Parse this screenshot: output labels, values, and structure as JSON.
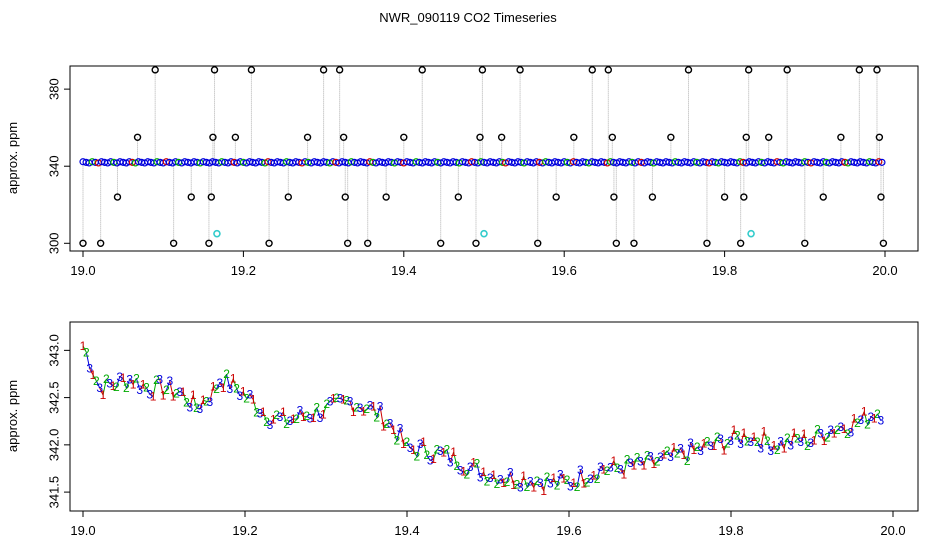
{
  "title": "NWR_090119  CO2 Timeseries",
  "colors": {
    "frame": "#000000",
    "connector": "#b0b0b0",
    "series1": "#cc0000",
    "series2": "#00aa00",
    "series3": "#0000dd",
    "flagged": "#33cccc"
  },
  "chart_data": [
    {
      "type": "scatter",
      "ylabel": "approx. ppm",
      "xlabel": "",
      "xlim": [
        19.0,
        20.0
      ],
      "ylim": [
        296,
        392
      ],
      "xticks": [
        19.0,
        19.2,
        19.4,
        19.6,
        19.8,
        20.0
      ],
      "yticks": [
        300,
        340,
        380
      ],
      "baseline": 342,
      "outliers": [
        {
          "x": 19.0,
          "y": 300
        },
        {
          "x": 19.022,
          "y": 300
        },
        {
          "x": 19.043,
          "y": 324
        },
        {
          "x": 19.068,
          "y": 355
        },
        {
          "x": 19.09,
          "y": 390
        },
        {
          "x": 19.113,
          "y": 300
        },
        {
          "x": 19.135,
          "y": 324
        },
        {
          "x": 19.157,
          "y": 300
        },
        {
          "x": 19.16,
          "y": 324
        },
        {
          "x": 19.162,
          "y": 355
        },
        {
          "x": 19.164,
          "y": 390
        },
        {
          "x": 19.19,
          "y": 355
        },
        {
          "x": 19.21,
          "y": 390
        },
        {
          "x": 19.232,
          "y": 300
        },
        {
          "x": 19.256,
          "y": 324
        },
        {
          "x": 19.28,
          "y": 355
        },
        {
          "x": 19.3,
          "y": 390
        },
        {
          "x": 19.32,
          "y": 390
        },
        {
          "x": 19.325,
          "y": 355
        },
        {
          "x": 19.327,
          "y": 324
        },
        {
          "x": 19.33,
          "y": 300
        },
        {
          "x": 19.355,
          "y": 300
        },
        {
          "x": 19.378,
          "y": 324
        },
        {
          "x": 19.4,
          "y": 355
        },
        {
          "x": 19.423,
          "y": 390
        },
        {
          "x": 19.446,
          "y": 300
        },
        {
          "x": 19.468,
          "y": 324
        },
        {
          "x": 19.49,
          "y": 300
        },
        {
          "x": 19.495,
          "y": 355
        },
        {
          "x": 19.498,
          "y": 390
        },
        {
          "x": 19.522,
          "y": 355
        },
        {
          "x": 19.545,
          "y": 390
        },
        {
          "x": 19.567,
          "y": 300
        },
        {
          "x": 19.59,
          "y": 324
        },
        {
          "x": 19.612,
          "y": 355
        },
        {
          "x": 19.635,
          "y": 390
        },
        {
          "x": 19.655,
          "y": 390
        },
        {
          "x": 19.66,
          "y": 355
        },
        {
          "x": 19.662,
          "y": 324
        },
        {
          "x": 19.665,
          "y": 300
        },
        {
          "x": 19.687,
          "y": 300
        },
        {
          "x": 19.71,
          "y": 324
        },
        {
          "x": 19.733,
          "y": 355
        },
        {
          "x": 19.755,
          "y": 390
        },
        {
          "x": 19.778,
          "y": 300
        },
        {
          "x": 19.8,
          "y": 324
        },
        {
          "x": 19.82,
          "y": 300
        },
        {
          "x": 19.824,
          "y": 324
        },
        {
          "x": 19.827,
          "y": 355
        },
        {
          "x": 19.83,
          "y": 390
        },
        {
          "x": 19.855,
          "y": 355
        },
        {
          "x": 19.878,
          "y": 390
        },
        {
          "x": 19.9,
          "y": 300
        },
        {
          "x": 19.923,
          "y": 324
        },
        {
          "x": 19.945,
          "y": 355
        },
        {
          "x": 19.968,
          "y": 390
        },
        {
          "x": 19.99,
          "y": 390
        },
        {
          "x": 19.993,
          "y": 355
        },
        {
          "x": 19.995,
          "y": 324
        },
        {
          "x": 19.998,
          "y": 300
        }
      ],
      "flagged": [
        {
          "x": 19.167,
          "y": 305
        },
        {
          "x": 19.5,
          "y": 305
        },
        {
          "x": 19.833,
          "y": 305
        }
      ]
    },
    {
      "type": "scatter",
      "ylabel": "approx. ppm",
      "xlabel": "",
      "xlim": [
        19.0,
        20.0
      ],
      "ylim": [
        341.3,
        343.3
      ],
      "xticks": [
        19.0,
        19.2,
        19.4,
        19.6,
        19.8,
        20.0
      ],
      "yticks": [
        341.5,
        342.0,
        342.5,
        343.0
      ],
      "point_labels": [
        "1",
        "2",
        "3"
      ],
      "trend": [
        {
          "x": 19.0,
          "y": 343.05
        },
        {
          "x": 19.01,
          "y": 342.85
        },
        {
          "x": 19.02,
          "y": 342.6
        },
        {
          "x": 19.04,
          "y": 342.65
        },
        {
          "x": 19.06,
          "y": 342.7
        },
        {
          "x": 19.08,
          "y": 342.6
        },
        {
          "x": 19.1,
          "y": 342.6
        },
        {
          "x": 19.12,
          "y": 342.55
        },
        {
          "x": 19.14,
          "y": 342.4
        },
        {
          "x": 19.16,
          "y": 342.55
        },
        {
          "x": 19.17,
          "y": 342.7
        },
        {
          "x": 19.19,
          "y": 342.6
        },
        {
          "x": 19.21,
          "y": 342.45
        },
        {
          "x": 19.23,
          "y": 342.3
        },
        {
          "x": 19.25,
          "y": 342.25
        },
        {
          "x": 19.27,
          "y": 342.3
        },
        {
          "x": 19.29,
          "y": 342.35
        },
        {
          "x": 19.31,
          "y": 342.4
        },
        {
          "x": 19.33,
          "y": 342.45
        },
        {
          "x": 19.35,
          "y": 342.4
        },
        {
          "x": 19.37,
          "y": 342.3
        },
        {
          "x": 19.39,
          "y": 342.1
        },
        {
          "x": 19.4,
          "y": 341.95
        },
        {
          "x": 19.42,
          "y": 341.95
        },
        {
          "x": 19.44,
          "y": 341.9
        },
        {
          "x": 19.46,
          "y": 341.85
        },
        {
          "x": 19.48,
          "y": 341.75
        },
        {
          "x": 19.5,
          "y": 341.7
        },
        {
          "x": 19.52,
          "y": 341.65
        },
        {
          "x": 19.54,
          "y": 341.65
        },
        {
          "x": 19.56,
          "y": 341.62
        },
        {
          "x": 19.58,
          "y": 341.6
        },
        {
          "x": 19.6,
          "y": 341.6
        },
        {
          "x": 19.62,
          "y": 341.68
        },
        {
          "x": 19.64,
          "y": 341.75
        },
        {
          "x": 19.66,
          "y": 341.75
        },
        {
          "x": 19.68,
          "y": 341.78
        },
        {
          "x": 19.7,
          "y": 341.8
        },
        {
          "x": 19.72,
          "y": 341.85
        },
        {
          "x": 19.74,
          "y": 341.9
        },
        {
          "x": 19.76,
          "y": 341.95
        },
        {
          "x": 19.78,
          "y": 342.0
        },
        {
          "x": 19.8,
          "y": 342.05
        },
        {
          "x": 19.82,
          "y": 342.1
        },
        {
          "x": 19.84,
          "y": 342.05
        },
        {
          "x": 19.86,
          "y": 342.0
        },
        {
          "x": 19.88,
          "y": 342.05
        },
        {
          "x": 19.9,
          "y": 342.05
        },
        {
          "x": 19.92,
          "y": 342.15
        },
        {
          "x": 19.94,
          "y": 342.2
        },
        {
          "x": 19.96,
          "y": 342.25
        },
        {
          "x": 19.98,
          "y": 342.35
        }
      ]
    }
  ]
}
